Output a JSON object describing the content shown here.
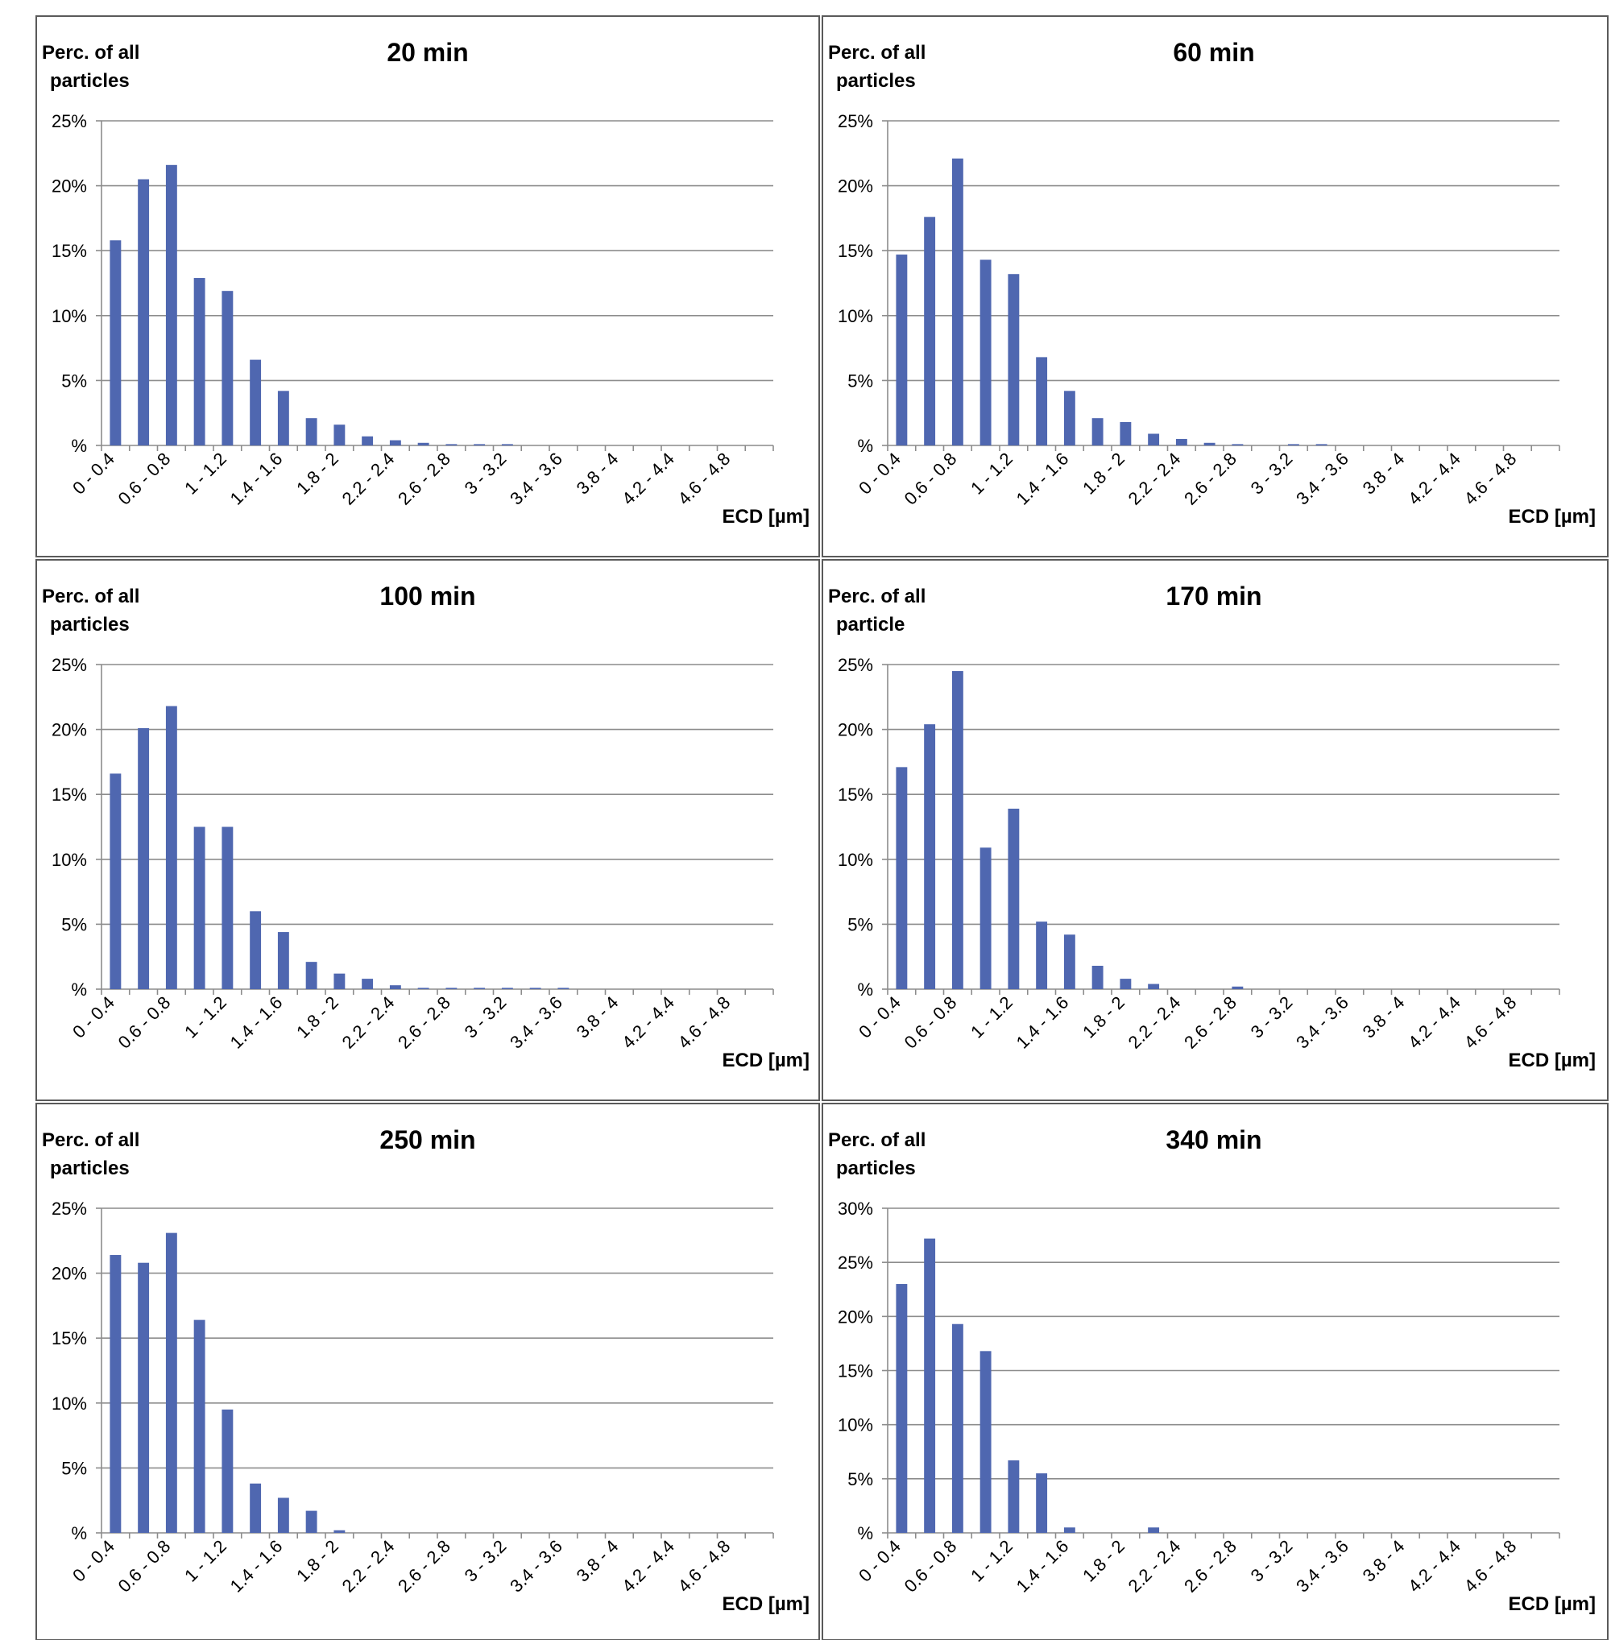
{
  "bar_color": "#4f67b0",
  "chart_data": [
    {
      "type": "bar",
      "title": "20 min",
      "ylabel": [
        "Perc. of all",
        "particles"
      ],
      "xlabel": "ECD [µm]",
      "ylim": [
        0,
        25
      ],
      "yticks": [
        0,
        5,
        10,
        15,
        20,
        25
      ],
      "ytick_labels": [
        "%",
        "5%",
        "10%",
        "15%",
        "20%",
        "25%"
      ],
      "categories": [
        "0 - 0.4",
        "0.4 - 0.6",
        "0.6 - 0.8",
        "0.8 - 1",
        "1 - 1.2",
        "1.2 - 1.4",
        "1.4 - 1.6",
        "1.6 - 1.8",
        "1.8 - 2",
        "2 - 2.2",
        "2.2 - 2.4",
        "2.4 - 2.6",
        "2.6 - 2.8",
        "2.8 - 3",
        "3 - 3.2",
        "3.2 - 3.4",
        "3.4 - 3.6",
        "3.6 - 3.8",
        "3.8 - 4",
        "4 - 4.2",
        "4.2 - 4.4",
        "4.4 - 4.6",
        "4.6 - 4.8",
        "4.8 - 5"
      ],
      "xtick_labels": [
        "0 - 0.4",
        "0.6 - 0.8",
        "1 - 1.2",
        "1.4 - 1.6",
        "1.8 - 2",
        "2.2 - 2.4",
        "2.6 - 2.8",
        "3 - 3.2",
        "3.4 - 3.6",
        "3.8 - 4",
        "4.2 - 4.4",
        "4.6 - 4.8"
      ],
      "values": [
        15.8,
        20.5,
        21.6,
        12.9,
        11.9,
        6.6,
        4.2,
        2.1,
        1.6,
        0.7,
        0.4,
        0.2,
        0.1,
        0.1,
        0.1,
        0,
        0,
        0,
        0,
        0,
        0,
        0,
        0,
        0
      ],
      "grid": true,
      "legend": "none"
    },
    {
      "type": "bar",
      "title": "60 min",
      "ylabel": [
        "Perc. of all",
        "particles"
      ],
      "xlabel": "ECD [µm]",
      "ylim": [
        0,
        25
      ],
      "yticks": [
        0,
        5,
        10,
        15,
        20,
        25
      ],
      "ytick_labels": [
        "%",
        "5%",
        "10%",
        "15%",
        "20%",
        "25%"
      ],
      "categories": [
        "0 - 0.4",
        "0.4 - 0.6",
        "0.6 - 0.8",
        "0.8 - 1",
        "1 - 1.2",
        "1.2 - 1.4",
        "1.4 - 1.6",
        "1.6 - 1.8",
        "1.8 - 2",
        "2 - 2.2",
        "2.2 - 2.4",
        "2.4 - 2.6",
        "2.6 - 2.8",
        "2.8 - 3",
        "3 - 3.2",
        "3.2 - 3.4",
        "3.4 - 3.6",
        "3.6 - 3.8",
        "3.8 - 4",
        "4 - 4.2",
        "4.2 - 4.4",
        "4.4 - 4.6",
        "4.6 - 4.8",
        "4.8 - 5"
      ],
      "xtick_labels": [
        "0 - 0.4",
        "0.6 - 0.8",
        "1 - 1.2",
        "1.4 - 1.6",
        "1.8 - 2",
        "2.2 - 2.4",
        "2.6 - 2.8",
        "3 - 3.2",
        "3.4 - 3.6",
        "3.8 - 4",
        "4.2 - 4.4",
        "4.6 - 4.8"
      ],
      "values": [
        14.7,
        17.6,
        22.1,
        14.3,
        13.2,
        6.8,
        4.2,
        2.1,
        1.8,
        0.9,
        0.5,
        0.2,
        0.1,
        0,
        0.1,
        0.1,
        0,
        0,
        0,
        0,
        0,
        0,
        0,
        0
      ],
      "grid": true,
      "legend": "none"
    },
    {
      "type": "bar",
      "title": "100 min",
      "ylabel": [
        "Perc. of all",
        "particles"
      ],
      "xlabel": "ECD [µm]",
      "ylim": [
        0,
        25
      ],
      "yticks": [
        0,
        5,
        10,
        15,
        20,
        25
      ],
      "ytick_labels": [
        "%",
        "5%",
        "10%",
        "15%",
        "20%",
        "25%"
      ],
      "categories": [
        "0 - 0.4",
        "0.4 - 0.6",
        "0.6 - 0.8",
        "0.8 - 1",
        "1 - 1.2",
        "1.2 - 1.4",
        "1.4 - 1.6",
        "1.6 - 1.8",
        "1.8 - 2",
        "2 - 2.2",
        "2.2 - 2.4",
        "2.4 - 2.6",
        "2.6 - 2.8",
        "2.8 - 3",
        "3 - 3.2",
        "3.2 - 3.4",
        "3.4 - 3.6",
        "3.6 - 3.8",
        "3.8 - 4",
        "4 - 4.2",
        "4.2 - 4.4",
        "4.4 - 4.6",
        "4.6 - 4.8",
        "4.8 - 5"
      ],
      "xtick_labels": [
        "0 - 0.4",
        "0.6 - 0.8",
        "1 - 1.2",
        "1.4 - 1.6",
        "1.8 - 2",
        "2.2 - 2.4",
        "2.6 - 2.8",
        "3 - 3.2",
        "3.4 - 3.6",
        "3.8 - 4",
        "4.2 - 4.4",
        "4.6 - 4.8"
      ],
      "values": [
        16.6,
        20.1,
        21.8,
        12.5,
        12.5,
        6.0,
        4.4,
        2.1,
        1.2,
        0.8,
        0.3,
        0.1,
        0.1,
        0.1,
        0.1,
        0.1,
        0.1,
        0,
        0,
        0,
        0,
        0,
        0,
        0
      ],
      "grid": true,
      "legend": "none"
    },
    {
      "type": "bar",
      "title": "170 min",
      "ylabel": [
        "Perc. of all",
        "particle"
      ],
      "xlabel": "ECD [µm]",
      "ylim": [
        0,
        25
      ],
      "yticks": [
        0,
        5,
        10,
        15,
        20,
        25
      ],
      "ytick_labels": [
        "%",
        "5%",
        "10%",
        "15%",
        "20%",
        "25%"
      ],
      "categories": [
        "0 - 0.4",
        "0.4 - 0.6",
        "0.6 - 0.8",
        "0.8 - 1",
        "1 - 1.2",
        "1.2 - 1.4",
        "1.4 - 1.6",
        "1.6 - 1.8",
        "1.8 - 2",
        "2 - 2.2",
        "2.2 - 2.4",
        "2.4 - 2.6",
        "2.6 - 2.8",
        "2.8 - 3",
        "3 - 3.2",
        "3.2 - 3.4",
        "3.4 - 3.6",
        "3.6 - 3.8",
        "3.8 - 4",
        "4 - 4.2",
        "4.2 - 4.4",
        "4.4 - 4.6",
        "4.6 - 4.8",
        "4.8 - 5"
      ],
      "xtick_labels": [
        "0 - 0.4",
        "0.6 - 0.8",
        "1 - 1.2",
        "1.4 - 1.6",
        "1.8 - 2",
        "2.2 - 2.4",
        "2.6 - 2.8",
        "3 - 3.2",
        "3.4 - 3.6",
        "3.8 - 4",
        "4.2 - 4.4",
        "4.6 - 4.8"
      ],
      "values": [
        17.1,
        20.4,
        24.5,
        10.9,
        13.9,
        5.2,
        4.2,
        1.8,
        0.8,
        0.4,
        0,
        0,
        0.2,
        0,
        0,
        0,
        0,
        0,
        0,
        0,
        0,
        0,
        0,
        0
      ],
      "grid": true,
      "legend": "none"
    },
    {
      "type": "bar",
      "title": "250 min",
      "ylabel": [
        "Perc. of all",
        "particles"
      ],
      "xlabel": "ECD [µm]",
      "ylim": [
        0,
        25
      ],
      "yticks": [
        0,
        5,
        10,
        15,
        20,
        25
      ],
      "ytick_labels": [
        "%",
        "5%",
        "10%",
        "15%",
        "20%",
        "25%"
      ],
      "categories": [
        "0 - 0.4",
        "0.4 - 0.6",
        "0.6 - 0.8",
        "0.8 - 1",
        "1 - 1.2",
        "1.2 - 1.4",
        "1.4 - 1.6",
        "1.6 - 1.8",
        "1.8 - 2",
        "2 - 2.2",
        "2.2 - 2.4",
        "2.4 - 2.6",
        "2.6 - 2.8",
        "2.8 - 3",
        "3 - 3.2",
        "3.2 - 3.4",
        "3.4 - 3.6",
        "3.6 - 3.8",
        "3.8 - 4",
        "4 - 4.2",
        "4.2 - 4.4",
        "4.4 - 4.6",
        "4.6 - 4.8",
        "4.8 - 5"
      ],
      "xtick_labels": [
        "0 - 0.4",
        "0.6 - 0.8",
        "1 - 1.2",
        "1.4 - 1.6",
        "1.8 - 2",
        "2.2 - 2.4",
        "2.6 - 2.8",
        "3 - 3.2",
        "3.4 - 3.6",
        "3.8 - 4",
        "4.2 - 4.4",
        "4.6 - 4.8"
      ],
      "values": [
        21.4,
        20.8,
        23.1,
        16.4,
        9.5,
        3.8,
        2.7,
        1.7,
        0.2,
        0,
        0,
        0,
        0,
        0,
        0,
        0,
        0,
        0,
        0,
        0,
        0,
        0,
        0,
        0
      ],
      "grid": true,
      "legend": "none"
    },
    {
      "type": "bar",
      "title": "340 min",
      "ylabel": [
        "Perc. of all",
        "particles"
      ],
      "xlabel": "ECD [µm]",
      "ylim": [
        0,
        30
      ],
      "yticks": [
        0,
        5,
        10,
        15,
        20,
        25,
        30
      ],
      "ytick_labels": [
        "%",
        "5%",
        "10%",
        "15%",
        "20%",
        "25%",
        "30%"
      ],
      "categories": [
        "0 - 0.4",
        "0.4 - 0.6",
        "0.6 - 0.8",
        "0.8 - 1",
        "1 - 1.2",
        "1.2 - 1.4",
        "1.4 - 1.6",
        "1.6 - 1.8",
        "1.8 - 2",
        "2 - 2.2",
        "2.2 - 2.4",
        "2.4 - 2.6",
        "2.6 - 2.8",
        "2.8 - 3",
        "3 - 3.2",
        "3.2 - 3.4",
        "3.4 - 3.6",
        "3.6 - 3.8",
        "3.8 - 4",
        "4 - 4.2",
        "4.2 - 4.4",
        "4.4 - 4.6",
        "4.6 - 4.8",
        "4.8 - 5"
      ],
      "xtick_labels": [
        "0 - 0.4",
        "0.6 - 0.8",
        "1 - 1.2",
        "1.4 - 1.6",
        "1.8 - 2",
        "2.2 - 2.4",
        "2.6 - 2.8",
        "3 - 3.2",
        "3.4 - 3.6",
        "3.8 - 4",
        "4.2 - 4.4",
        "4.6 - 4.8"
      ],
      "values": [
        23.0,
        27.2,
        19.3,
        16.8,
        6.7,
        5.5,
        0.5,
        0,
        0,
        0.5,
        0,
        0,
        0,
        0,
        0,
        0,
        0,
        0,
        0,
        0,
        0,
        0,
        0,
        0
      ],
      "grid": true,
      "legend": "none"
    }
  ]
}
